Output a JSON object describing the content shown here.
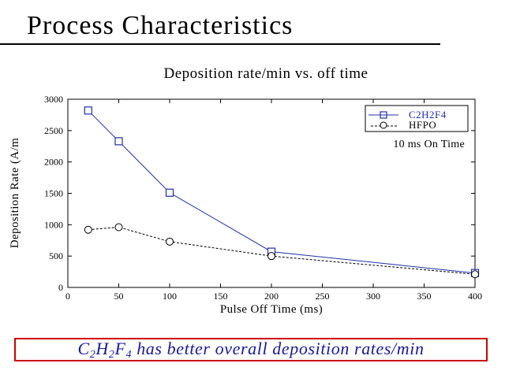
{
  "slide": {
    "title": "Process Characteristics",
    "conclusion": {
      "parts": [
        {
          "text": "C",
          "sub": false
        },
        {
          "text": "2",
          "sub": true
        },
        {
          "text": "H",
          "sub": false
        },
        {
          "text": "2",
          "sub": true
        },
        {
          "text": "F",
          "sub": false
        },
        {
          "text": "4",
          "sub": true
        },
        {
          "text": " has better overall deposition rates/min",
          "sub": false
        }
      ]
    }
  },
  "chart_data": {
    "type": "line",
    "title": "Deposition rate/min vs. off time",
    "xlabel": "Pulse Off Time (ms)",
    "ylabel": "Deposition Rate (A/m",
    "xlim": [
      0,
      400
    ],
    "ylim": [
      0,
      3000
    ],
    "xticks": [
      0,
      50,
      100,
      150,
      200,
      250,
      300,
      350,
      400
    ],
    "yticks": [
      0,
      500,
      1000,
      1500,
      2000,
      2500,
      3000
    ],
    "grid": false,
    "legend_position": "top-right",
    "annotation": "10 ms On Time",
    "series": [
      {
        "name": "C2H2F4",
        "marker": "square",
        "line": "solid",
        "color": "#1f2fa8",
        "x": [
          20,
          50,
          100,
          200,
          400
        ],
        "y": [
          2820,
          2330,
          1510,
          570,
          230
        ]
      },
      {
        "name": "HFPO",
        "marker": "circle",
        "line": "dashed",
        "color": "#000000",
        "x": [
          20,
          50,
          100,
          200,
          400
        ],
        "y": [
          920,
          960,
          730,
          500,
          210
        ]
      }
    ]
  }
}
